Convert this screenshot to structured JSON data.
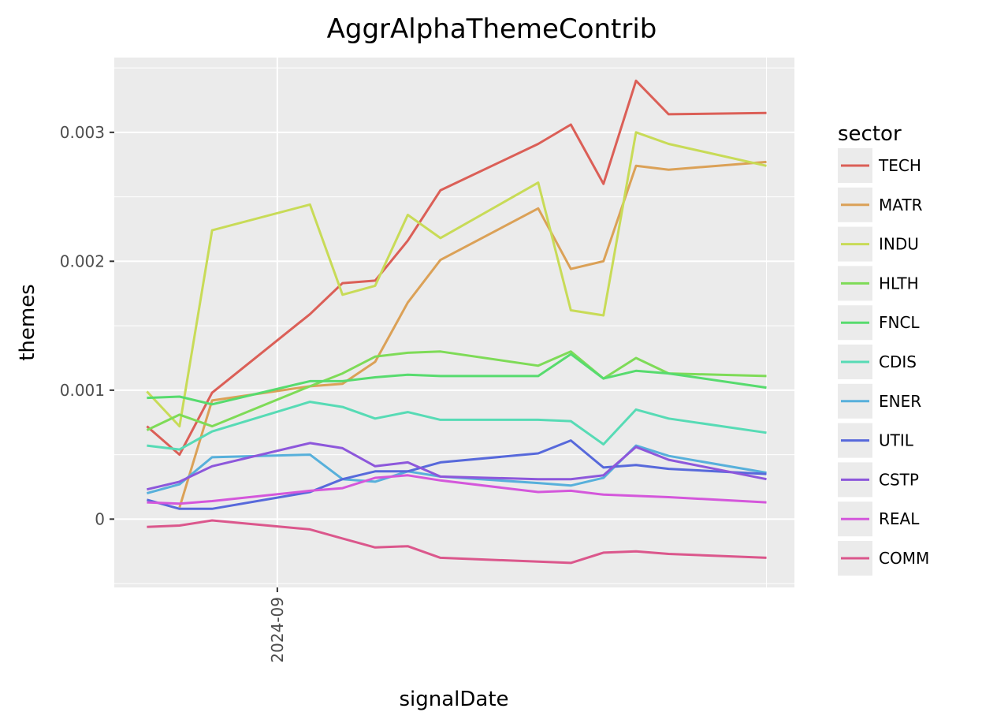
{
  "chart_data": {
    "type": "line",
    "title": "AggrAlphaThemeContrib",
    "xlabel": "signalDate",
    "ylabel": "themes",
    "legend_title": "sector",
    "legend_position": "right",
    "grid": true,
    "x": [
      "2024-08-04",
      "2024-08-11",
      "2024-08-18",
      "2024-09-08",
      "2024-09-15",
      "2024-09-22",
      "2024-09-29",
      "2024-10-06",
      "2024-10-27",
      "2024-11-03",
      "2024-11-10",
      "2024-11-17",
      "2024-11-24",
      "2024-12-15"
    ],
    "x_ticks": [
      {
        "date": "2024-09-01",
        "label": "2024-09"
      }
    ],
    "xlim": [
      "2024-07-28",
      "2024-12-21"
    ],
    "y_ticks": [
      0,
      0.001,
      0.002,
      0.003
    ],
    "y_tick_labels": [
      "0",
      "0.001",
      "0.002",
      "0.003"
    ],
    "ylim": [
      -0.00053,
      0.00358
    ],
    "series": [
      {
        "name": "TECH",
        "color": "#db5f57",
        "values": [
          0.00072,
          0.0005,
          0.00098,
          0.00159,
          0.00183,
          0.00185,
          0.00216,
          0.00255,
          0.00291,
          0.00306,
          0.0026,
          0.0034,
          0.00314,
          0.00315
        ]
      },
      {
        "name": "MATR",
        "color": "#dba157",
        "values": [
          null,
          9e-05,
          0.00092,
          0.00103,
          0.00105,
          0.00122,
          0.00168,
          0.00201,
          0.00241,
          0.00194,
          0.002,
          0.00274,
          0.00271,
          0.00277
        ]
      },
      {
        "name": "INDU",
        "color": "#c8db57",
        "values": [
          0.00099,
          0.00072,
          0.00224,
          0.00244,
          0.00174,
          0.00181,
          0.00236,
          0.00218,
          0.00261,
          0.00162,
          0.00158,
          0.003,
          0.00291,
          0.00274
        ]
      },
      {
        "name": "HLTH",
        "color": "#7edb57",
        "values": [
          0.00069,
          0.00081,
          0.00072,
          0.00103,
          0.00113,
          0.00126,
          0.00129,
          0.0013,
          0.00119,
          0.0013,
          0.00109,
          0.00125,
          0.00113,
          0.00111
        ]
      },
      {
        "name": "FNCL",
        "color": "#57db6e",
        "values": [
          0.00094,
          0.00095,
          0.00089,
          0.00107,
          0.00107,
          0.0011,
          0.00112,
          0.00111,
          0.00111,
          0.00128,
          0.00109,
          0.00115,
          0.00113,
          0.00102
        ]
      },
      {
        "name": "CDIS",
        "color": "#57dbb5",
        "values": [
          0.00057,
          0.00054,
          0.00068,
          0.00091,
          0.00087,
          0.00078,
          0.00083,
          0.00077,
          0.00077,
          0.00076,
          0.00058,
          0.00085,
          0.00078,
          0.00067
        ]
      },
      {
        "name": "ENER",
        "color": "#57b0db",
        "values": [
          0.0002,
          0.00027,
          0.00048,
          0.0005,
          0.00031,
          0.00029,
          0.00037,
          0.00033,
          0.00028,
          0.00026,
          0.00032,
          0.00057,
          0.00049,
          0.00036
        ]
      },
      {
        "name": "UTIL",
        "color": "#5769db",
        "values": [
          0.00015,
          8e-05,
          8e-05,
          0.00021,
          0.00031,
          0.00037,
          0.00037,
          0.00044,
          0.00051,
          0.00061,
          0.0004,
          0.00042,
          0.00039,
          0.00035
        ]
      },
      {
        "name": "CSTP",
        "color": "#8d57db",
        "values": [
          0.00023,
          0.00029,
          0.00041,
          0.00059,
          0.00055,
          0.00041,
          0.00044,
          0.00033,
          0.00031,
          0.00031,
          0.00034,
          0.00056,
          0.00046,
          0.00031
        ]
      },
      {
        "name": "REAL",
        "color": "#d457db",
        "values": [
          0.00013,
          0.00012,
          0.00014,
          0.00022,
          0.00024,
          0.00032,
          0.00034,
          0.0003,
          0.00021,
          0.00022,
          0.00019,
          0.00018,
          0.00017,
          0.00013
        ]
      },
      {
        "name": "COMM",
        "color": "#db578c",
        "values": [
          -6e-05,
          -5e-05,
          -1e-05,
          -8e-05,
          -0.00015,
          -0.00022,
          -0.00021,
          -0.0003,
          -0.00033,
          -0.00034,
          -0.00026,
          -0.00025,
          -0.00027,
          -0.0003
        ]
      }
    ]
  }
}
